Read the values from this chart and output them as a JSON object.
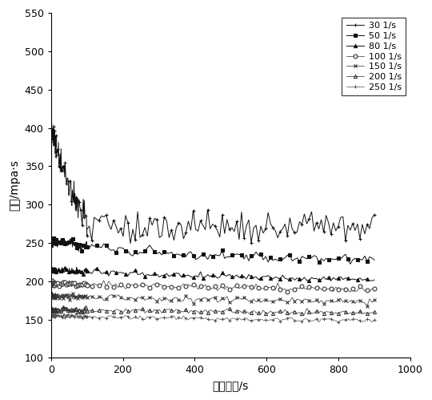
{
  "xlabel": "剪切时间/s",
  "ylabel": "粘度/mpa·s",
  "xlim": [
    0,
    1000
  ],
  "ylim": [
    100,
    550
  ],
  "xticks": [
    0,
    200,
    400,
    600,
    800,
    1000
  ],
  "yticks": [
    100,
    150,
    200,
    250,
    300,
    350,
    400,
    450,
    500,
    550
  ],
  "series": [
    {
      "label": "30 1/s",
      "marker": "+",
      "markersize": 3.5,
      "color": "#111111",
      "linewidth": 0.7,
      "start_y": 400,
      "end_y": 270,
      "tau": 55,
      "noise": 10,
      "osc_amp": 12,
      "osc_freq": 20,
      "osc_decay": 180
    },
    {
      "label": "50 1/s",
      "marker": "s",
      "markersize": 3,
      "color": "#111111",
      "linewidth": 0.7,
      "start_y": 252,
      "end_y": 226,
      "tau": 350,
      "noise": 3,
      "osc_amp": 0,
      "osc_freq": 0,
      "osc_decay": 1
    },
    {
      "label": "80 1/s",
      "marker": "^",
      "markersize": 3,
      "color": "#111111",
      "linewidth": 0.7,
      "start_y": 215,
      "end_y": 200,
      "tau": 500,
      "noise": 2,
      "osc_amp": 0,
      "osc_freq": 0,
      "osc_decay": 1
    },
    {
      "label": "100 1/s",
      "marker": "o",
      "markersize": 3.5,
      "color": "#333333",
      "linewidth": 0.5,
      "start_y": 197,
      "end_y": 187,
      "tau": 700,
      "noise": 2,
      "osc_amp": 0,
      "osc_freq": 0,
      "osc_decay": 1
    },
    {
      "label": "150 1/s",
      "marker": "x",
      "markersize": 3.5,
      "color": "#333333",
      "linewidth": 0.5,
      "start_y": 181,
      "end_y": 170,
      "tau": 700,
      "noise": 2,
      "osc_amp": 0,
      "osc_freq": 0,
      "osc_decay": 1
    },
    {
      "label": "200 1/s",
      "marker": "^",
      "markersize": 3,
      "color": "#333333",
      "linewidth": 0.5,
      "start_y": 163,
      "end_y": 157,
      "tau": 700,
      "noise": 1.5,
      "osc_amp": 0,
      "osc_freq": 0,
      "osc_decay": 1
    },
    {
      "label": "250 1/s",
      "marker": "+",
      "markersize": 3.5,
      "color": "#555555",
      "linewidth": 0.5,
      "start_y": 155,
      "end_y": 147,
      "tau": 700,
      "noise": 1.5,
      "osc_amp": 0,
      "osc_freq": 0,
      "osc_decay": 1
    }
  ],
  "markevery": [
    3,
    4,
    4,
    3,
    3,
    3,
    3
  ],
  "mfc": [
    "#111111",
    "#111111",
    "#111111",
    "white",
    "white",
    "none",
    "#555555"
  ],
  "background_color": "#ffffff",
  "legend_fontsize": 8,
  "axis_fontsize": 10,
  "tick_fontsize": 9
}
